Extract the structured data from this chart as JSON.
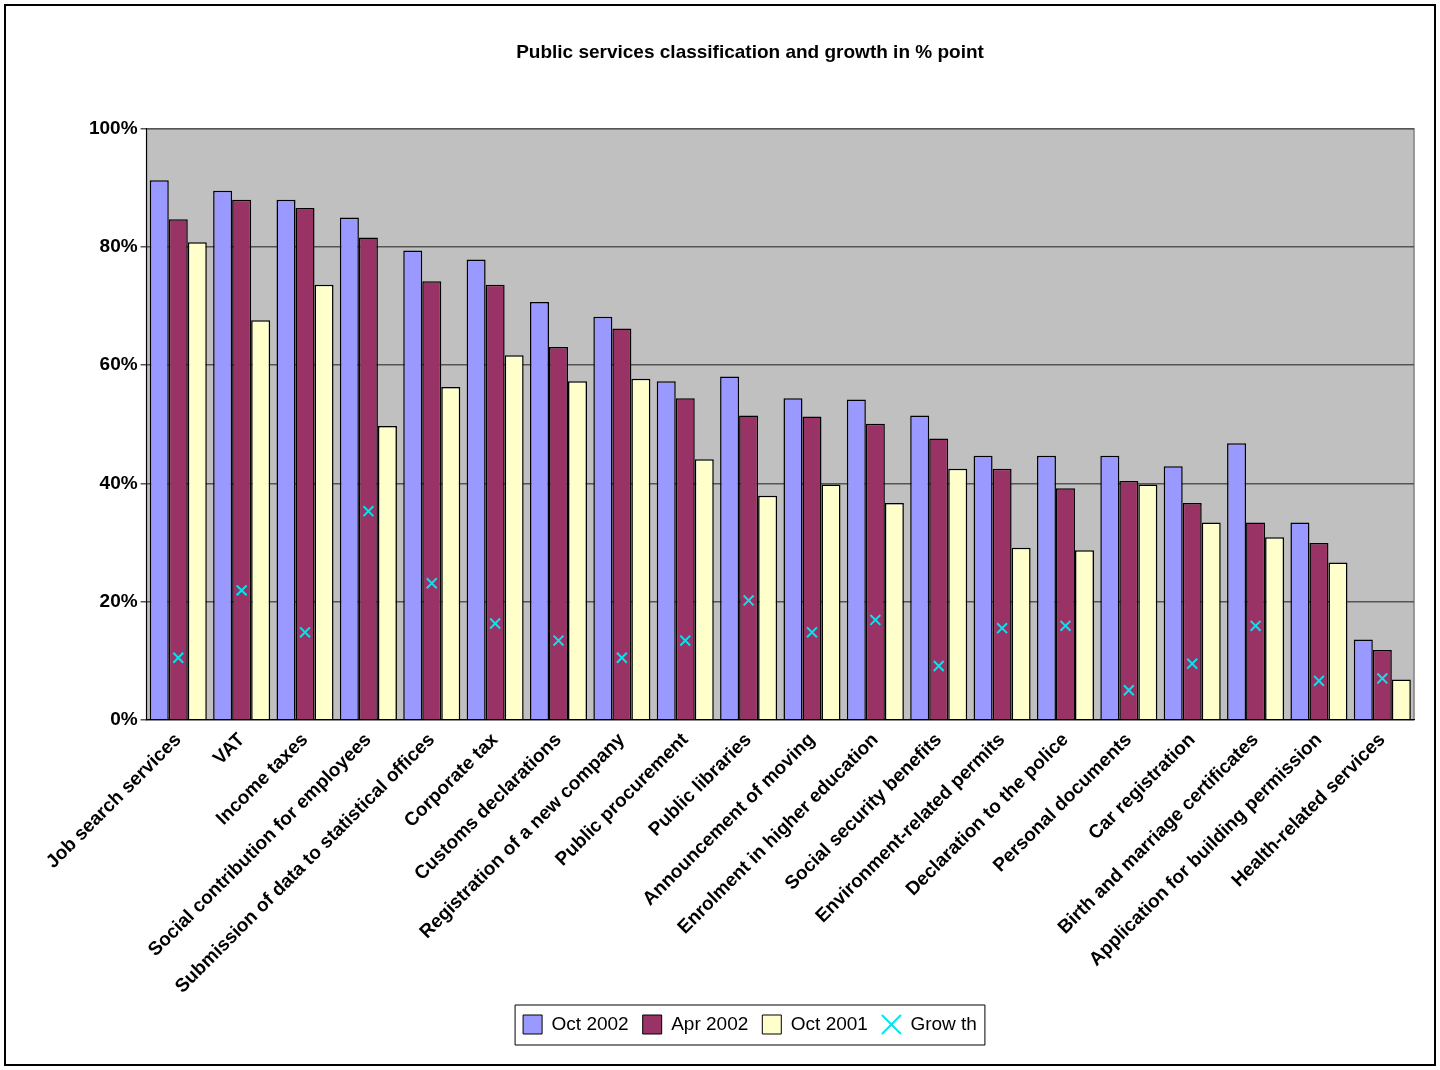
{
  "chart_data": {
    "type": "bar",
    "title": "Public services classification and growth in % point",
    "categories": [
      "Job search services",
      "VAT",
      "Income taxes",
      "Social contribution for employees",
      "Submission of data to statistical offices",
      "Corporate tax",
      "Customs declarations",
      "Registration of a new company",
      "Public procurement",
      "Public libraries",
      "Announcement of moving",
      "Enrolment in higher education",
      "Social security benefits",
      "Environment-related permits",
      "Declaration to the police",
      "Personal documents",
      "Car registration",
      "Birth and marriage certificates",
      "Application for building permission",
      "Health-related services"
    ],
    "series": [
      {
        "name": "Oct 2002",
        "color": "#9999ff",
        "values": [
          91.3,
          89.5,
          88.0,
          85.0,
          79.4,
          77.9,
          70.7,
          68.2,
          57.3,
          58.1,
          54.4,
          54.2,
          51.5,
          44.7,
          44.7,
          44.7,
          42.9,
          46.8,
          33.4,
          13.6
        ]
      },
      {
        "name": "Apr 2002",
        "color": "#993366",
        "values": [
          84.7,
          88.0,
          86.6,
          81.6,
          74.2,
          73.6,
          63.1,
          66.2,
          54.4,
          51.5,
          51.3,
          50.1,
          47.6,
          42.5,
          39.2,
          40.4,
          36.7,
          33.4,
          29.9,
          11.8
        ]
      },
      {
        "name": "Oct 2001",
        "color": "#ffffcc",
        "values": [
          80.8,
          67.6,
          73.6,
          49.7,
          56.3,
          61.7,
          57.3,
          57.7,
          44.1,
          37.9,
          39.8,
          36.7,
          42.5,
          29.1,
          28.7,
          39.8,
          33.4,
          30.9,
          26.6,
          6.8
        ]
      },
      {
        "name": "Grow th",
        "type": "scatter",
        "marker": "cross",
        "color": "#00e5ee",
        "values": [
          10.5,
          21.9,
          14.8,
          35.3,
          23.1,
          16.3,
          13.4,
          10.5,
          13.4,
          20.2,
          14.8,
          16.9,
          9.1,
          15.5,
          15.9,
          5.0,
          9.5,
          15.9,
          6.6,
          7.0
        ]
      }
    ],
    "ylim": [
      0,
      100
    ],
    "yticks": [
      {
        "value": 0,
        "label": "0%"
      },
      {
        "value": 20,
        "label": "20%"
      },
      {
        "value": 40,
        "label": "40%"
      },
      {
        "value": 60,
        "label": "60%"
      },
      {
        "value": 80,
        "label": "80%"
      },
      {
        "value": 100,
        "label": "100%"
      }
    ],
    "grid": "y",
    "legend": "bottom"
  }
}
